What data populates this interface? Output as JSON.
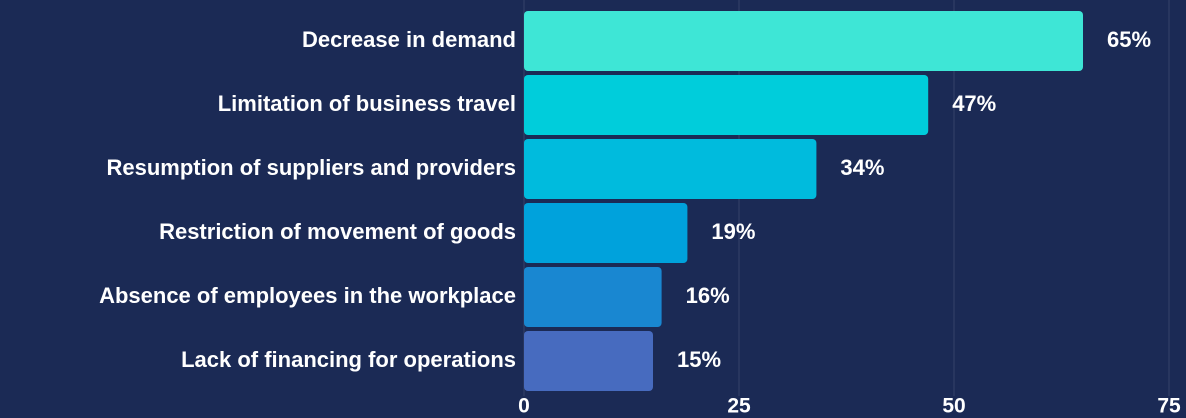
{
  "chart_data": {
    "type": "barh",
    "categories": [
      "Decrease in demand",
      "Limitation of business travel",
      "Resumption of suppliers and providers",
      "Restriction of movement of goods",
      "Absence of employees in the workplace",
      "Lack of financing for operations"
    ],
    "values": [
      65,
      47,
      34,
      19,
      16,
      15
    ],
    "value_labels": [
      "65%",
      "47%",
      "34%",
      "19%",
      "16%",
      "15%"
    ],
    "colors": [
      "#3ee6d6",
      "#00cddb",
      "#00bbdd",
      "#00a2dc",
      "#1987d1",
      "#476bbf"
    ],
    "xlim": [
      0,
      75
    ],
    "xticks": [
      0,
      25,
      50,
      75
    ],
    "grid": true
  }
}
